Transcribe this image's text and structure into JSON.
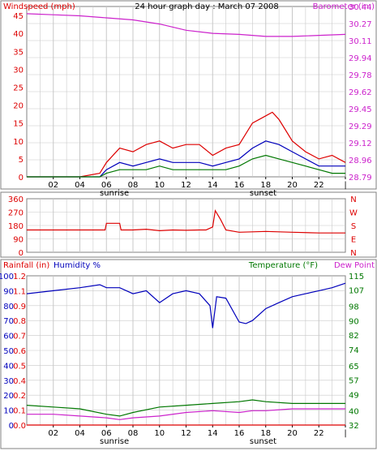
{
  "title": "24 hour graph day : March 07 2008",
  "colors": {
    "red": "#dd0000",
    "magenta": "#cc22cc",
    "blue": "#0000bb",
    "green": "#007700",
    "grid": "#c8c8c8",
    "frame": "#808080"
  },
  "chart_data": [
    {
      "id": "wind-baro",
      "type": "line",
      "title": "24 hour graph day : March 07 2008",
      "y_left_label": "Windspeed (mph)",
      "y_right_label": "Barometer (in.)",
      "y_left_ticks": [
        0,
        5,
        10,
        15,
        20,
        25,
        30,
        35,
        40,
        45
      ],
      "y_left_range": [
        0,
        47.5
      ],
      "y_right_ticks": [
        "28.79",
        "28.96",
        "29.12",
        "29.29",
        "29.45",
        "29.62",
        "29.78",
        "29.94",
        "30.11",
        "30.27",
        "30.44"
      ],
      "y_right_range": [
        28.79,
        30.44
      ],
      "x_ticks": [
        "02",
        "04",
        "06",
        "08",
        "10",
        "12",
        "14",
        "16",
        "18",
        "20",
        "22",
        "|"
      ],
      "x_range": [
        0,
        24
      ],
      "markers": [
        {
          "label": "sunrise",
          "x": 6.6
        },
        {
          "label": "sunset",
          "x": 17.8
        }
      ],
      "series": [
        {
          "name": "barometer",
          "axis": "right",
          "color": "#cc22cc",
          "x": [
            0,
            2,
            4,
            6,
            8,
            10,
            12,
            14,
            16,
            18,
            20,
            22,
            24
          ],
          "y": [
            30.37,
            30.36,
            30.35,
            30.33,
            30.31,
            30.27,
            30.21,
            30.18,
            30.17,
            30.15,
            30.15,
            30.16,
            30.17
          ]
        },
        {
          "name": "wind gust",
          "axis": "left",
          "color": "#dd0000",
          "x": [
            0,
            2,
            4,
            5.5,
            6,
            7,
            8,
            9,
            10,
            11,
            12,
            13,
            14,
            15,
            16,
            16.5,
            17,
            17.5,
            18,
            18.5,
            19,
            19.5,
            20,
            21,
            22,
            23,
            24
          ],
          "y": [
            0,
            0,
            0,
            1,
            4,
            8,
            7,
            9,
            10,
            8,
            9,
            9,
            6,
            8,
            9,
            12,
            15,
            16,
            17,
            18,
            16,
            13,
            10,
            7,
            5,
            6,
            4
          ]
        },
        {
          "name": "wind speed",
          "axis": "left",
          "color": "#0000bb",
          "x": [
            0,
            4,
            5.5,
            6,
            7,
            8,
            9,
            10,
            11,
            12,
            13,
            14,
            15,
            16,
            17,
            18,
            19,
            20,
            21,
            22,
            23,
            24
          ],
          "y": [
            0,
            0,
            0,
            2,
            4,
            3,
            4,
            5,
            4,
            4,
            4,
            3,
            4,
            5,
            8,
            10,
            9,
            7,
            5,
            3,
            3,
            3
          ]
        },
        {
          "name": "wind average",
          "axis": "left",
          "color": "#007700",
          "x": [
            0,
            4,
            5.5,
            6,
            7,
            8,
            9,
            10,
            11,
            12,
            13,
            14,
            15,
            16,
            17,
            18,
            19,
            20,
            21,
            22,
            23,
            24
          ],
          "y": [
            0,
            0,
            0,
            1,
            2,
            2,
            2,
            3,
            2,
            2,
            2,
            2,
            2,
            3,
            5,
            6,
            5,
            4,
            3,
            2,
            1,
            1
          ]
        }
      ]
    },
    {
      "id": "wind-dir",
      "type": "line",
      "y_left_ticks": [
        0,
        90,
        180,
        270,
        360
      ],
      "y_left_range": [
        0,
        360
      ],
      "y_right_ticks": [
        "N",
        "W",
        "S",
        "E",
        "N"
      ],
      "x_range": [
        0,
        24
      ],
      "series": [
        {
          "name": "wind direction",
          "color": "#dd0000",
          "x": [
            0,
            5.9,
            6.0,
            7.0,
            7.1,
            8,
            9,
            10,
            11,
            12,
            13,
            13.5,
            14,
            14.2,
            14.6,
            15,
            16,
            18,
            20,
            22,
            24
          ],
          "y": [
            150,
            150,
            195,
            195,
            150,
            150,
            155,
            145,
            150,
            148,
            150,
            150,
            170,
            280,
            220,
            150,
            135,
            140,
            135,
            130,
            130
          ]
        }
      ]
    },
    {
      "id": "rain-hum-temp",
      "type": "line",
      "y_rain_label": "Rainfall (in)",
      "y_humidity_label": "Humidity %",
      "y_temp_label": "Temperature (°F)",
      "y_dew_label": "Dew Point",
      "y_rain_ticks": [
        "0.0",
        "0.1",
        "0.2",
        "0.4",
        "0.5",
        "0.6",
        "0.7",
        "0.8",
        "0.9",
        "1.1",
        "1.2"
      ],
      "y_humidity_ticks": [
        0,
        10,
        20,
        30,
        40,
        50,
        60,
        70,
        80,
        90,
        100
      ],
      "y_humidity_range": [
        0,
        100
      ],
      "y_temp_ticks": [
        32,
        40,
        49,
        57,
        65,
        74,
        82,
        90,
        98,
        107,
        115
      ],
      "y_temp_range": [
        32,
        115
      ],
      "x_ticks": [
        "02",
        "04",
        "06",
        "08",
        "10",
        "12",
        "14",
        "16",
        "18",
        "20",
        "22",
        "|"
      ],
      "x_range": [
        0,
        24
      ],
      "markers": [
        {
          "label": "sunrise",
          "x": 6.6
        },
        {
          "label": "sunset",
          "x": 17.8
        }
      ],
      "series": [
        {
          "name": "humidity",
          "axis": "humidity",
          "color": "#0000bb",
          "x": [
            0,
            2,
            4,
            5.5,
            6,
            7,
            8,
            9,
            10,
            11,
            12,
            13,
            13.8,
            14,
            14.3,
            15,
            16,
            16.5,
            17,
            18,
            19,
            20,
            21,
            22,
            23,
            24
          ],
          "y": [
            88,
            90,
            92,
            94,
            92,
            92,
            88,
            90,
            82,
            88,
            90,
            88,
            80,
            65,
            86,
            85,
            69,
            68,
            70,
            78,
            82,
            86,
            88,
            90,
            92,
            95
          ]
        },
        {
          "name": "temperature",
          "axis": "temp",
          "color": "#007700",
          "x": [
            0,
            2,
            4,
            6,
            7,
            8,
            10,
            12,
            14,
            16,
            17,
            18,
            20,
            22,
            24
          ],
          "y": [
            43,
            42,
            41,
            38,
            37,
            39,
            42,
            43,
            44,
            45,
            46,
            45,
            44,
            44,
            44
          ]
        },
        {
          "name": "dew point",
          "axis": "temp",
          "color": "#cc22cc",
          "x": [
            0,
            2,
            4,
            6,
            7,
            8,
            10,
            12,
            14,
            16,
            17,
            18,
            20,
            22,
            24
          ],
          "y": [
            38,
            38,
            37,
            36,
            35,
            36,
            37,
            39,
            40,
            39,
            40,
            40,
            41,
            41,
            41
          ]
        },
        {
          "name": "rainfall",
          "axis": "rain",
          "color": "#dd0000",
          "x": [
            0,
            12,
            17.5,
            18.5,
            20,
            22,
            24
          ],
          "y": [
            0.0,
            0.0,
            0.0,
            0.0,
            0.0,
            0.0,
            0.0
          ]
        }
      ]
    }
  ]
}
